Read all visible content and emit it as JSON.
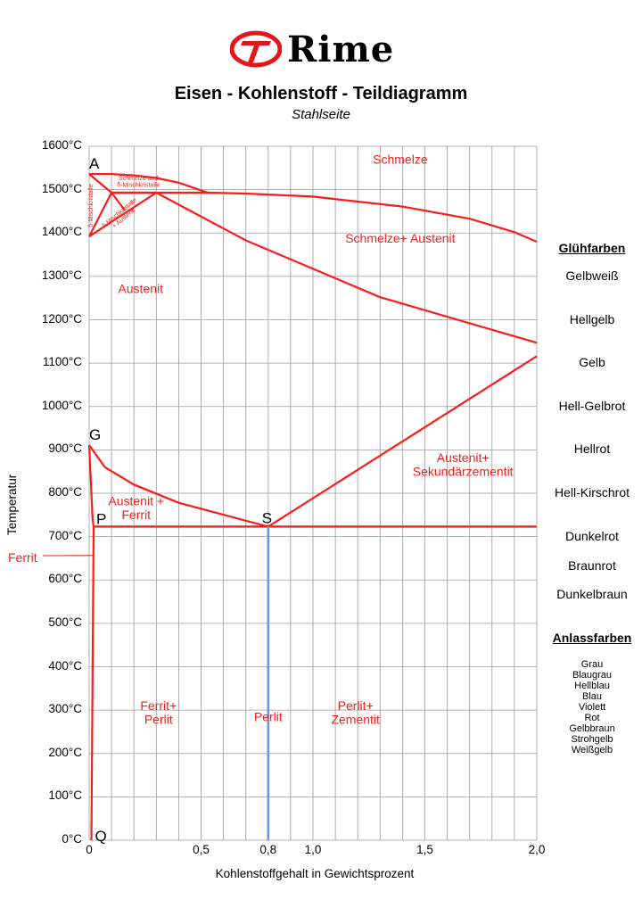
{
  "brand": {
    "name": "Rime",
    "logo_color": "#e3161c"
  },
  "title": "Eisen - Kohlenstoff - Teildiagramm",
  "subtitle": "Stahlseite",
  "axes": {
    "xlabel": "Kohlenstoffgehalt in Gewichtsprozent",
    "ylabel": "Temperatur",
    "x_ticks": [
      {
        "value": 0,
        "label": "0"
      },
      {
        "value": 0.5,
        "label": "0,5"
      },
      {
        "value": 0.8,
        "label": "0,8"
      },
      {
        "value": 1.0,
        "label": "1,0"
      },
      {
        "value": 1.5,
        "label": "1,5"
      },
      {
        "value": 2.0,
        "label": "2,0"
      }
    ],
    "y_ticks": [
      {
        "value": 1600,
        "label": "1600°C"
      },
      {
        "value": 1500,
        "label": "1500°C"
      },
      {
        "value": 1400,
        "label": "1400°C"
      },
      {
        "value": 1300,
        "label": "1300°C"
      },
      {
        "value": 1200,
        "label": "1200°C"
      },
      {
        "value": 1100,
        "label": "1100°C"
      },
      {
        "value": 1000,
        "label": "1000°C"
      },
      {
        "value": 900,
        "label": "900°C"
      },
      {
        "value": 800,
        "label": "800°C"
      },
      {
        "value": 700,
        "label": "700°C"
      },
      {
        "value": 600,
        "label": "600°C"
      },
      {
        "value": 500,
        "label": "500°C"
      },
      {
        "value": 400,
        "label": "400°C"
      },
      {
        "value": 300,
        "label": "300°C"
      },
      {
        "value": 200,
        "label": "200°C"
      },
      {
        "value": 100,
        "label": "100°C"
      },
      {
        "value": 0,
        "label": "0°C"
      }
    ],
    "xlim": [
      0,
      2.0
    ],
    "ylim": [
      0,
      1600
    ],
    "grid_x_step": 0.1,
    "grid_y_step": 100
  },
  "colors": {
    "phase_line": "#ff1a1a",
    "perlit_line": "#5b9bf0",
    "grid": "#9a9a9a",
    "label": "#ff1a1a"
  },
  "points": [
    {
      "name": "A",
      "x": 0,
      "y": 1536
    },
    {
      "name": "G",
      "x": 0,
      "y": 911
    },
    {
      "name": "P",
      "x": 0.02,
      "y": 723
    },
    {
      "name": "S",
      "x": 0.8,
      "y": 723
    },
    {
      "name": "Q",
      "x": 0.01,
      "y": 0
    }
  ],
  "lines": [
    {
      "id": "liquidus-delta",
      "points": [
        [
          0,
          1536
        ],
        [
          0.1,
          1536
        ],
        [
          0.2,
          1533
        ],
        [
          0.3,
          1527
        ],
        [
          0.4,
          1516
        ],
        [
          0.53,
          1493
        ]
      ]
    },
    {
      "id": "liquidus-austenit",
      "points": [
        [
          0.53,
          1493
        ],
        [
          0.7,
          1491
        ],
        [
          1.0,
          1484
        ],
        [
          1.4,
          1461
        ],
        [
          1.7,
          1433
        ],
        [
          1.9,
          1402
        ],
        [
          2.0,
          1380
        ]
      ]
    },
    {
      "id": "peritectic-line",
      "points": [
        [
          0.1,
          1493
        ],
        [
          0.53,
          1493
        ]
      ]
    },
    {
      "id": "solidus-austenit",
      "points": [
        [
          0.3,
          1493
        ],
        [
          0.7,
          1383
        ],
        [
          1.3,
          1252
        ],
        [
          2.0,
          1147
        ]
      ]
    },
    {
      "id": "delta-upper",
      "points": [
        [
          0,
          1536
        ],
        [
          0.1,
          1493
        ]
      ]
    },
    {
      "id": "delta-lower",
      "points": [
        [
          0.1,
          1493
        ],
        [
          0,
          1392
        ]
      ]
    },
    {
      "id": "delta-austenit-left",
      "points": [
        [
          0,
          1392
        ],
        [
          0.3,
          1493
        ]
      ]
    },
    {
      "id": "delta-austenit-right",
      "points": [
        [
          0.1,
          1493
        ],
        [
          0.3,
          1493
        ]
      ]
    },
    {
      "id": "delta-inner",
      "points": [
        [
          0.1,
          1493
        ],
        [
          0.16,
          1452
        ]
      ]
    },
    {
      "id": "gs-line",
      "points": [
        [
          0,
          911
        ],
        [
          0.07,
          860
        ],
        [
          0.2,
          820
        ],
        [
          0.4,
          778
        ],
        [
          0.8,
          723
        ]
      ]
    },
    {
      "id": "se-line",
      "points": [
        [
          0.8,
          723
        ],
        [
          2.0,
          1116
        ]
      ]
    },
    {
      "id": "psk-line",
      "points": [
        [
          0.02,
          723
        ],
        [
          2.0,
          723
        ]
      ]
    },
    {
      "id": "gp-line",
      "points": [
        [
          0,
          911
        ],
        [
          0.01,
          800
        ],
        [
          0.015,
          740
        ],
        [
          0.02,
          723
        ]
      ]
    },
    {
      "id": "pq-line",
      "points": [
        [
          0.02,
          723
        ],
        [
          0.01,
          0
        ]
      ]
    }
  ],
  "perlit_line": {
    "x": 0.8,
    "y_from": 0,
    "y_to": 723
  },
  "region_labels": [
    {
      "text": [
        "Schmelze"
      ],
      "x": 1.39,
      "y": 1560,
      "size": 14
    },
    {
      "text": [
        "Schmelze+ Austenit"
      ],
      "x": 1.39,
      "y": 1378,
      "size": 14
    },
    {
      "text": [
        "Austenit"
      ],
      "x": 0.23,
      "y": 1262,
      "size": 14
    },
    {
      "text": [
        "Austenit+",
        "Sekundärzementit"
      ],
      "x": 1.67,
      "y": 872,
      "size": 14
    },
    {
      "text": [
        "Austenit +",
        "Ferrit"
      ],
      "x": 0.21,
      "y": 772,
      "size": 14
    },
    {
      "text": [
        "Ferrit+",
        "Perlit"
      ],
      "x": 0.31,
      "y": 300,
      "size": 14
    },
    {
      "text": [
        "Perlit"
      ],
      "x": 0.8,
      "y": 275,
      "size": 14
    },
    {
      "text": [
        "Perlit+",
        "Zementit"
      ],
      "x": 1.19,
      "y": 300,
      "size": 14
    },
    {
      "text": [
        "Schmelze und",
        "δ-Mischkristalle"
      ],
      "x": 0.22,
      "y": 1522,
      "size": 7
    },
    {
      "text": [
        "δ-Mischkristalle"
      ],
      "x": 0.015,
      "y": 1463,
      "size": 7,
      "rotate": -90
    },
    {
      "text": [
        "δ-Mischkristalle",
        "+ Austenit"
      ],
      "x": 0.14,
      "y": 1443,
      "size": 7,
      "rotate": -40
    }
  ],
  "ferrit_callout": {
    "text": "Ferrit",
    "pointer_to": [
      0.01,
      640
    ]
  },
  "gluehfarben": {
    "heading": "Glühfarben",
    "items": [
      {
        "label": "Gelbweiß",
        "y": 1300
      },
      {
        "label": "Hellgelb",
        "y": 1200
      },
      {
        "label": "Gelb",
        "y": 1100
      },
      {
        "label": "Hell-Gelbrot",
        "y": 1000
      },
      {
        "label": "Hellrot",
        "y": 900
      },
      {
        "label": "Hell-Kirschrot",
        "y": 800
      },
      {
        "label": "Dunkelrot",
        "y": 700
      },
      {
        "label": "Braunrot",
        "y": 632
      },
      {
        "label": "Dunkelbraun",
        "y": 566
      }
    ]
  },
  "anlassfarben": {
    "heading": "Anlassfarben",
    "items": [
      "Grau",
      "Blaugrau",
      "Hellblau",
      "Blau",
      "Violett",
      "Rot",
      "Gelbbraun",
      "Strohgelb",
      "Weißgelb"
    ]
  }
}
